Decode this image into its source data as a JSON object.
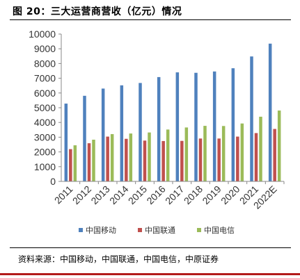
{
  "figure": {
    "title": "图 20：三大运营商营收（亿元）情况",
    "source": "资料来源：中国移动，中国联通，中国电信，中原证券"
  },
  "colors": {
    "china_mobile": "#4f81bd",
    "china_unicom": "#c0504d",
    "china_telecom": "#9bbb59",
    "footer_bar": "#b31b1b"
  },
  "chart_data": {
    "type": "bar",
    "title": "",
    "xlabel": "",
    "ylabel": "",
    "categories": [
      "2011",
      "2012",
      "2013",
      "2014",
      "2015",
      "2016",
      "2017",
      "2018",
      "2019",
      "2020",
      "2021",
      "2022E"
    ],
    "series": [
      {
        "name": "中国移动",
        "color": "#4f81bd",
        "values": [
          5280,
          5810,
          6300,
          6520,
          6680,
          7080,
          7400,
          7370,
          7460,
          7680,
          8480,
          9350
        ]
      },
      {
        "name": "中国联通",
        "color": "#c0504d",
        "values": [
          2190,
          2590,
          3040,
          2890,
          2770,
          2740,
          2750,
          2910,
          2910,
          3040,
          3280,
          3560
        ]
      },
      {
        "name": "中国电信",
        "color": "#9bbb59",
        "values": [
          2450,
          2830,
          3210,
          3250,
          3320,
          3520,
          3660,
          3770,
          3760,
          3930,
          4390,
          4810
        ]
      }
    ],
    "ylim": [
      0,
      10000
    ],
    "yticks": [
      "0",
      "1000",
      "2000",
      "3000",
      "4000",
      "5000",
      "6000",
      "7000",
      "8000",
      "9000",
      "10000"
    ],
    "grid": false,
    "legend_position": "bottom"
  }
}
